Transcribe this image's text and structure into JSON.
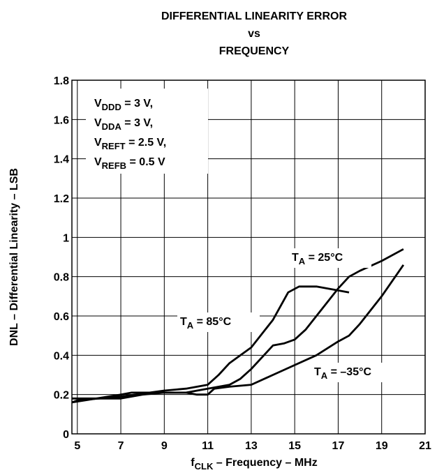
{
  "chart_data": {
    "type": "line",
    "title": [
      "DIFFERENTIAL LINEARITY ERROR",
      "vs",
      "FREQUENCY"
    ],
    "x_label": {
      "main": "f",
      "sub": "CLK",
      "rest": " – Frequency – MHz"
    },
    "y_label": "DNL – Differential Linearity – LSB",
    "conditions": [
      {
        "main": "V",
        "sub": "DDD",
        "rest": " = 3 V,"
      },
      {
        "main": "V",
        "sub": "DDA",
        "rest": " = 3 V,"
      },
      {
        "main": "V",
        "sub": "REFT",
        "rest": " = 2.5 V,"
      },
      {
        "main": "V",
        "sub": "REFB",
        "rest": " = 0.5 V"
      }
    ],
    "xlim": [
      4.75,
      21
    ],
    "xticks": [
      5,
      7,
      9,
      11,
      13,
      15,
      17,
      19,
      21
    ],
    "ylim": [
      0,
      1.8
    ],
    "yticks": [
      0,
      0.2,
      0.4,
      0.6,
      0.8,
      1,
      1.2,
      1.4,
      1.6,
      1.8
    ],
    "grid": true,
    "series": [
      {
        "name": {
          "main": "T",
          "sub": "A",
          "rest": " = 85°C"
        },
        "color": "#000000",
        "x": [
          4.75,
          5,
          7,
          9,
          10,
          11,
          11.5,
          12,
          13,
          14,
          14.7,
          15.2,
          16,
          17,
          17.5
        ],
        "values": [
          0.16,
          0.17,
          0.19,
          0.22,
          0.23,
          0.25,
          0.3,
          0.36,
          0.44,
          0.58,
          0.72,
          0.75,
          0.75,
          0.73,
          0.72
        ]
      },
      {
        "name": {
          "main": "T",
          "sub": "A",
          "rest": " = 25°C"
        },
        "color": "#000000",
        "x": [
          4.75,
          7,
          7.5,
          9,
          10,
          11,
          12,
          12.5,
          13,
          14,
          14.5,
          15,
          15.5,
          16,
          17,
          17.5,
          18,
          19,
          20
        ],
        "values": [
          0.16,
          0.2,
          0.21,
          0.21,
          0.21,
          0.23,
          0.25,
          0.28,
          0.33,
          0.45,
          0.46,
          0.48,
          0.53,
          0.6,
          0.74,
          0.8,
          0.83,
          0.88,
          0.94
        ]
      },
      {
        "name": {
          "main": "T",
          "sub": "A",
          "rest": " = –35°C"
        },
        "color": "#000000",
        "x": [
          4.75,
          6,
          7,
          8,
          9,
          10,
          10.5,
          11,
          11.3,
          12,
          13,
          14,
          15,
          16,
          17,
          17.5,
          18,
          19,
          20
        ],
        "values": [
          0.18,
          0.18,
          0.18,
          0.2,
          0.21,
          0.21,
          0.2,
          0.2,
          0.23,
          0.24,
          0.25,
          0.3,
          0.35,
          0.4,
          0.47,
          0.5,
          0.56,
          0.7,
          0.86
        ]
      }
    ]
  }
}
